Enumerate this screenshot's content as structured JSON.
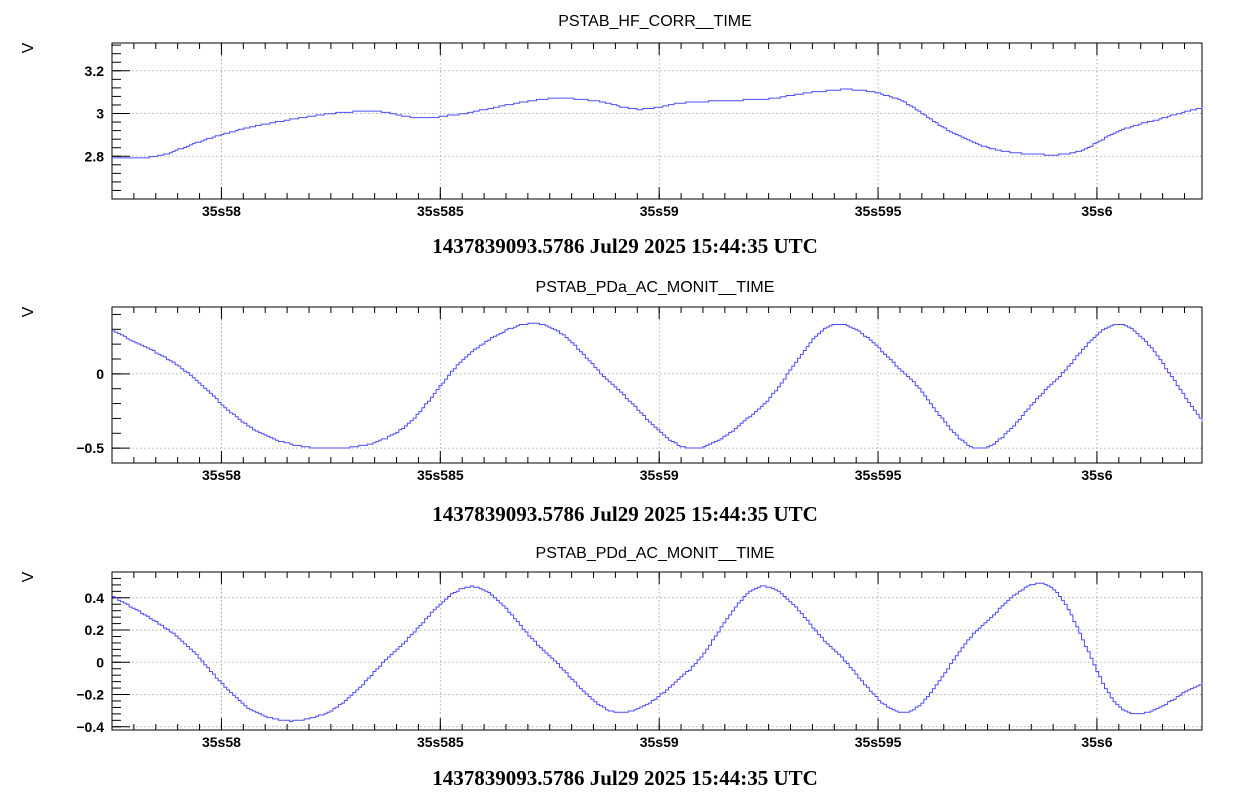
{
  "chart_data": [
    {
      "type": "line",
      "title": "PSTAB_HF_CORR__TIME",
      "ylabel": "V",
      "xlabel": "1437839093.5786 Jul29 2025 15:44:35 UTC",
      "xlim": [
        35.5775,
        35.6024
      ],
      "ylim": [
        2.6,
        3.33
      ],
      "y_ticks": [
        2.8,
        3,
        3.2
      ],
      "y_tick_labels": [
        "2.8",
        "3",
        "3.2"
      ],
      "x_ticks": [
        35.58,
        35.585,
        35.59,
        35.595,
        35.6
      ],
      "x_tick_labels": [
        "35s58",
        "35s585",
        "35s59",
        "35s595",
        "35s6"
      ],
      "grid": true,
      "line_style": "step",
      "color": "#4d4dff",
      "series": [
        {
          "x": [
            35.5775,
            35.5785,
            35.5795,
            35.5805,
            35.5815,
            35.5825,
            35.5835,
            35.5845,
            35.5855,
            35.5865,
            35.5875,
            35.5885,
            35.5895,
            35.5905,
            35.5915,
            35.5925,
            35.5935,
            35.5945,
            35.5955,
            35.5965,
            35.5975,
            35.5985,
            35.5995,
            35.6005,
            35.6015,
            35.6024
          ],
          "values": [
            2.79,
            2.8,
            2.87,
            2.93,
            2.97,
            3.0,
            3.01,
            2.98,
            3.0,
            3.04,
            3.07,
            3.06,
            3.02,
            3.05,
            3.06,
            3.07,
            3.1,
            3.11,
            3.06,
            2.93,
            2.84,
            2.81,
            2.82,
            2.92,
            2.98,
            3.03
          ]
        }
      ]
    },
    {
      "type": "line",
      "title": "PSTAB_PDa_AC_MONIT__TIME",
      "ylabel": "V",
      "xlabel": "1437839093.5786 Jul29 2025 15:44:35 UTC",
      "xlim": [
        35.5775,
        35.6024
      ],
      "ylim": [
        -0.6,
        0.45
      ],
      "y_ticks": [
        -0.5,
        0
      ],
      "y_tick_labels": [
        "−0.5",
        "0"
      ],
      "x_ticks": [
        35.58,
        35.585,
        35.59,
        35.595,
        35.6
      ],
      "x_tick_labels": [
        "35s58",
        "35s585",
        "35s59",
        "35s595",
        "35s6"
      ],
      "grid": true,
      "line_style": "step",
      "color": "#4d4dff",
      "series": [
        {
          "x": [
            35.5775,
            35.579,
            35.58075,
            35.5824,
            35.58405,
            35.5857,
            35.58735,
            35.589,
            35.59065,
            35.5923,
            35.59395,
            35.5956,
            35.59725,
            35.5989,
            35.60055,
            35.6024
          ],
          "values": [
            0.29,
            0.05,
            -0.38,
            -0.5,
            -0.38,
            0.15,
            0.33,
            -0.1,
            -0.5,
            -0.22,
            0.33,
            0.0,
            -0.5,
            -0.08,
            0.33,
            -0.32
          ]
        }
      ]
    },
    {
      "type": "line",
      "title": "PSTAB_PDd_AC_MONIT__TIME",
      "ylabel": "V",
      "xlabel": "1437839093.5786 Jul29 2025 15:44:35 UTC",
      "xlim": [
        35.5775,
        35.6024
      ],
      "ylim": [
        -0.42,
        0.56
      ],
      "y_ticks": [
        -0.4,
        -0.2,
        0,
        0.2,
        0.4
      ],
      "y_tick_labels": [
        "−0.4",
        "−0.2",
        "0",
        "0.2",
        "0.4"
      ],
      "x_ticks": [
        35.58,
        35.585,
        35.59,
        35.595,
        35.6
      ],
      "x_tick_labels": [
        "35s58",
        "35s585",
        "35s59",
        "35s595",
        "35s6"
      ],
      "grid": true,
      "line_style": "step",
      "color": "#4d4dff",
      "series": [
        {
          "x": [
            35.5775,
            35.579,
            35.58075,
            35.5824,
            35.58405,
            35.5857,
            35.58735,
            35.589,
            35.59065,
            35.5923,
            35.59395,
            35.5956,
            35.59725,
            35.5989,
            35.60055,
            35.6024
          ],
          "values": [
            0.41,
            0.15,
            -0.31,
            -0.31,
            0.1,
            0.47,
            0.07,
            -0.31,
            -0.05,
            0.47,
            0.08,
            -0.31,
            0.2,
            0.47,
            -0.29,
            -0.13
          ]
        }
      ]
    }
  ]
}
